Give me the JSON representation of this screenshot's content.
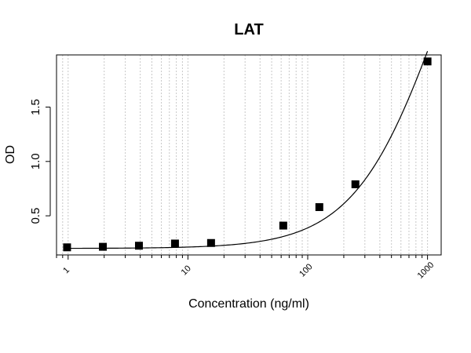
{
  "chart_data": {
    "type": "scatter",
    "title": "LAT",
    "xlabel": "Concentration (ng/ml)",
    "ylabel": "OD",
    "x_scale": "log",
    "xlim": [
      0.8,
      1300
    ],
    "ylim": [
      0.14,
      1.98
    ],
    "grid": "vertical dotted lines at each x minor tick",
    "x_ticks": [
      1,
      10,
      100,
      1000
    ],
    "x_tick_labels": [
      "1",
      "10",
      "100",
      "1000"
    ],
    "y_ticks": [
      0.5,
      1.0,
      1.5
    ],
    "y_tick_labels": [
      "0.5",
      "1.0",
      "1.5"
    ],
    "series": [
      {
        "marker": "square",
        "color": "#000000",
        "points": [
          {
            "x": 0.98,
            "y": 0.21
          },
          {
            "x": 1.95,
            "y": 0.215
          },
          {
            "x": 3.9,
            "y": 0.225
          },
          {
            "x": 7.8,
            "y": 0.245
          },
          {
            "x": 15.6,
            "y": 0.25
          },
          {
            "x": 62.5,
            "y": 0.41
          },
          {
            "x": 125,
            "y": 0.58
          },
          {
            "x": 250,
            "y": 0.79
          },
          {
            "x": 1000,
            "y": 1.92
          }
        ]
      }
    ],
    "fit_curve": {
      "type": "4PL",
      "color": "#000000",
      "a": 0.2,
      "d": 4.5,
      "c": 1300,
      "b": 1.2
    }
  }
}
